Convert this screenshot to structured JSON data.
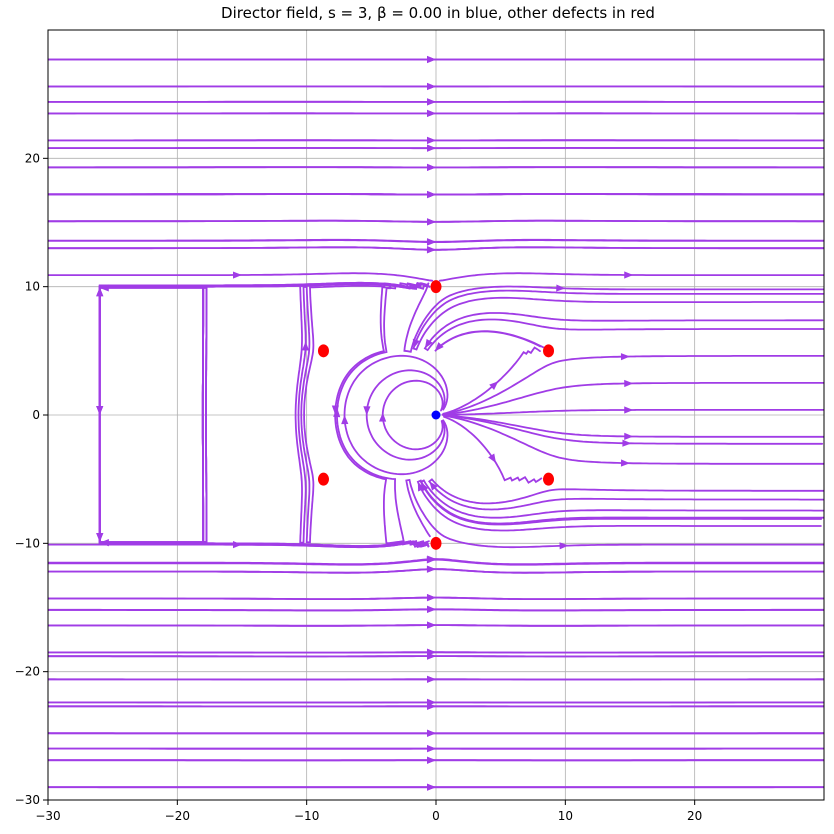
{
  "chart_data": {
    "type": "streamplot",
    "title": "Director field, s = 3, β = 0.00 in blue, other defects in red",
    "xlabel": "",
    "ylabel": "",
    "xlim": [
      -30,
      30
    ],
    "ylim": [
      -30,
      30
    ],
    "grid": true,
    "xticks": [
      -30,
      -20,
      -10,
      0,
      10,
      20
    ],
    "yticks": [
      -30,
      -20,
      -10,
      0,
      10,
      20
    ],
    "xtick_labels": [
      "−30",
      "−20",
      "−10",
      "0",
      "10",
      "20"
    ],
    "ytick_labels": [
      "−30",
      "−20",
      "−10",
      "0",
      "10",
      "20"
    ],
    "stream_color": "#a03ce6",
    "main_defect": {
      "x": 0,
      "y": 0,
      "color": "#0000ff"
    },
    "other_defects": {
      "color": "#ff0000",
      "points": [
        {
          "x": 0,
          "y": 10
        },
        {
          "x": 0,
          "y": -10
        },
        {
          "x": -8.7,
          "y": 5
        },
        {
          "x": 8.7,
          "y": 5
        },
        {
          "x": -8.7,
          "y": -5
        },
        {
          "x": 8.7,
          "y": -5
        }
      ]
    }
  }
}
